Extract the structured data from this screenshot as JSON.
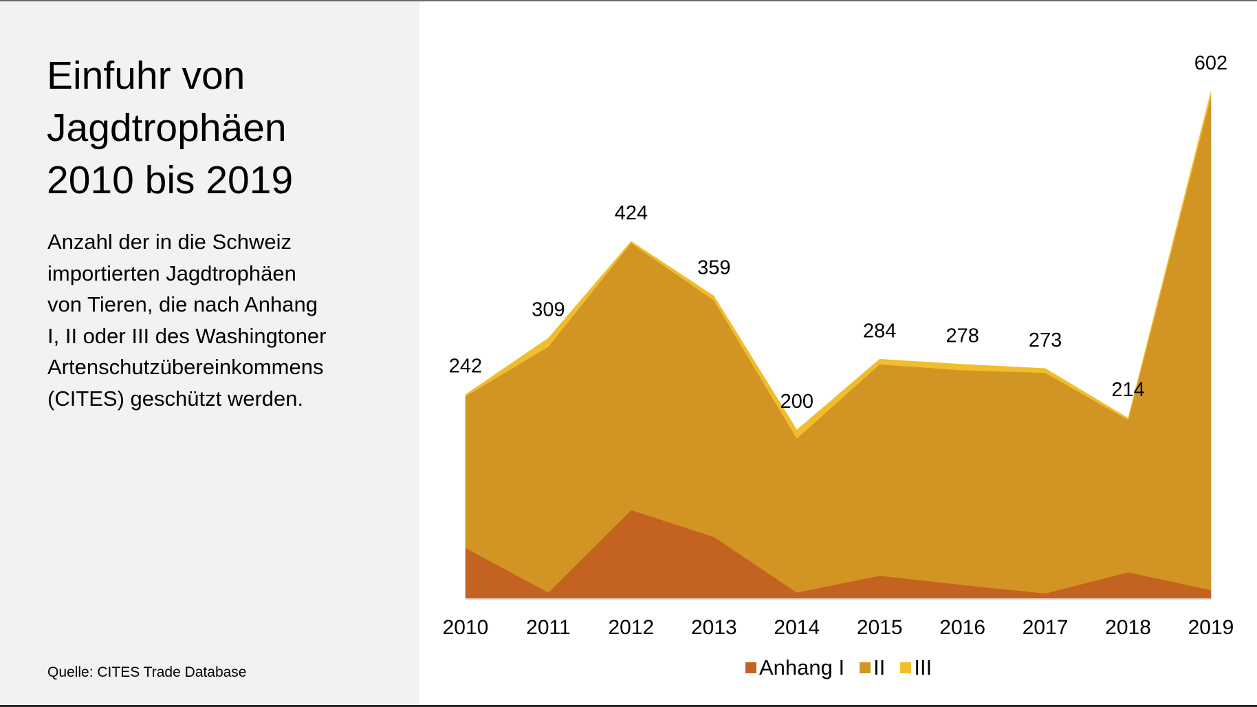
{
  "panel": {
    "title_lines": [
      "Einfuhr von",
      "Jagdtrophäen",
      "2010 bis 2019"
    ],
    "subtitle_lines": [
      "Anzahl der in die Schweiz",
      "importierten Jagdtrophäen",
      "von Tieren, die nach Anhang",
      "I, II oder III des Washingtoner",
      "Artenschutzübereinkommens",
      "(CITES) geschützt werden."
    ],
    "source": "Quelle: CITES Trade Database"
  },
  "chart_data": {
    "type": "area",
    "stacked": true,
    "title": "Einfuhr von Jagdtrophäen 2010 bis 2019",
    "xlabel": "",
    "ylabel": "",
    "categories": [
      "2010",
      "2011",
      "2012",
      "2013",
      "2014",
      "2015",
      "2016",
      "2017",
      "2018",
      "2019"
    ],
    "series": [
      {
        "name": "Anhang I",
        "color": "#c46221",
        "values": [
          60,
          7,
          105,
          73,
          7,
          27,
          16,
          6,
          31,
          10
        ]
      },
      {
        "name": "II",
        "color": "#d29524",
        "values": [
          180,
          292,
          317,
          281,
          183,
          251,
          255,
          262,
          181,
          586
        ]
      },
      {
        "name": "III",
        "color": "#f0bd2c",
        "values": [
          2,
          10,
          2,
          5,
          10,
          6,
          7,
          5,
          2,
          6
        ]
      }
    ],
    "totals": [
      242,
      309,
      424,
      359,
      200,
      284,
      278,
      273,
      214,
      602
    ],
    "total_labels": [
      "242",
      "309",
      "424",
      "359",
      "200",
      "284",
      "278",
      "273",
      "214",
      "602"
    ],
    "ylim": [
      0,
      602
    ],
    "grid": false,
    "y_axis_visible": false,
    "legend_position": "bottom"
  }
}
